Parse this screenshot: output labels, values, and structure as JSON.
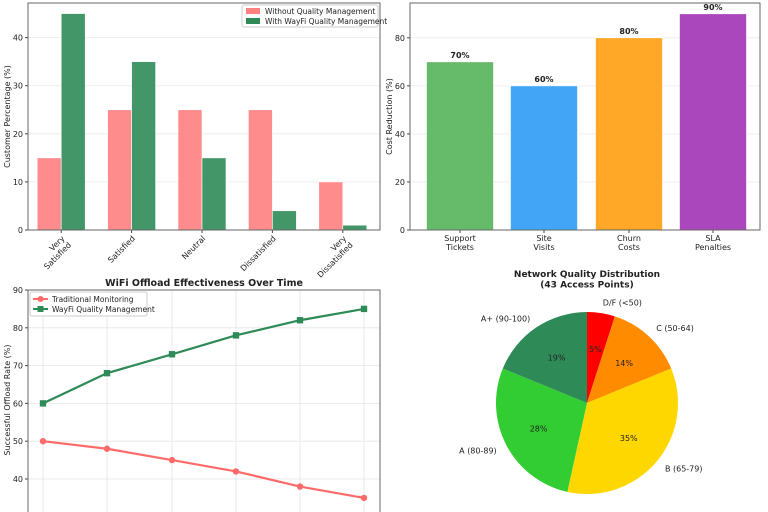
{
  "chart_data": [
    {
      "type": "bar",
      "title": "",
      "xlabel": "",
      "ylabel": "Customer Percentage (%)",
      "categories": [
        "Very\nSatisfied",
        "Satisfied",
        "Neutral",
        "Dissatisfied",
        "Very\nDissatisfied"
      ],
      "series": [
        {
          "name": "Without Quality Management",
          "values": [
            15,
            25,
            25,
            25,
            10
          ],
          "color": "#ff8080"
        },
        {
          "name": "With WayFi Quality Management",
          "values": [
            45,
            35,
            15,
            4,
            1
          ],
          "color": "#2e8b57"
        }
      ],
      "ylim": [
        0,
        47.2
      ],
      "yticks": [
        0,
        10,
        20,
        30,
        40
      ],
      "grid": true,
      "legend": "top-right"
    },
    {
      "type": "bar",
      "title": "",
      "xlabel": "",
      "ylabel": "Cost Reduction (%)",
      "categories": [
        "Support\nTickets",
        "Site\nVisits",
        "Churn\nCosts",
        "SLA\nPenalties"
      ],
      "values": [
        70,
        60,
        80,
        90
      ],
      "data_labels": [
        "70%",
        "60%",
        "80%",
        "90%"
      ],
      "colors": [
        "#66bb6a",
        "#42a5f5",
        "#ffa726",
        "#ab47bc"
      ],
      "ylim": [
        0,
        94.5
      ],
      "yticks": [
        0,
        20,
        40,
        60,
        80
      ],
      "grid": true
    },
    {
      "type": "line",
      "title": "WiFi Offload Effectiveness Over Time",
      "xlabel": "",
      "ylabel": "Successful Offload Rate (%)",
      "series": [
        {
          "name": "Traditional Monitoring",
          "values": [
            50,
            48,
            45,
            42,
            38,
            35
          ],
          "color": "#ff6b6b",
          "marker": "circle"
        },
        {
          "name": "WayFi Quality Management",
          "values": [
            60,
            68,
            73,
            78,
            82,
            85
          ],
          "color": "#2e8b57",
          "marker": "square"
        }
      ],
      "yticks": [
        40,
        50,
        60,
        70,
        80,
        90
      ],
      "ylim_top": 90,
      "grid": true,
      "legend": "top-left"
    },
    {
      "type": "pie",
      "title": "Network Quality Distribution\n(43 Access Points)",
      "labels": [
        "D/F (<50)",
        "C (50-64)",
        "B (65-79)",
        "A (80-89)",
        "A+ (90-100)"
      ],
      "values": [
        5,
        14,
        35,
        28,
        19
      ],
      "data_labels": [
        "5%",
        "14%",
        "35%",
        "28%",
        "19%"
      ],
      "colors": [
        "#ff0000",
        "#ff8c00",
        "#ffd700",
        "#32cd32",
        "#2e8b57"
      ],
      "start_angle": 90,
      "direction": "clockwise"
    }
  ]
}
